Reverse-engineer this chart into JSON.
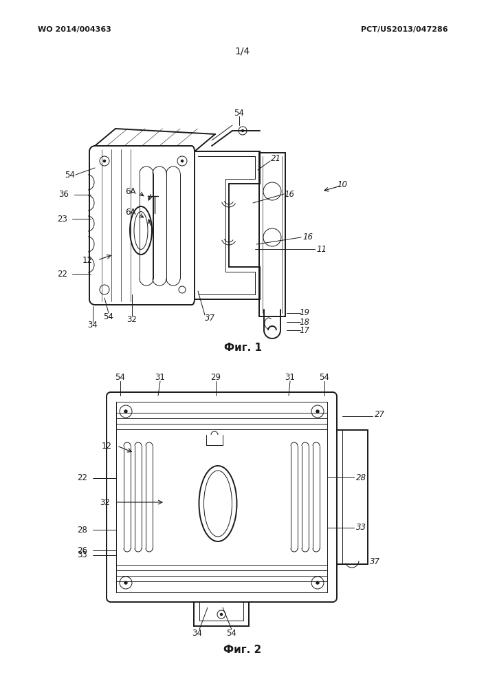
{
  "background_color": "#ffffff",
  "header_left": "WO 2014/004363",
  "header_right": "PCT/US2013/047286",
  "page_label": "1/4",
  "fig1_label": "Фиг. 1",
  "fig2_label": "Фиг. 2",
  "line_color": "#1a1a1a",
  "lw_main": 1.4,
  "lw_thin": 0.7,
  "lw_vt": 0.5,
  "label_fontsize": 8.5,
  "header_fontsize": 8,
  "page_fontsize": 10,
  "fig_caption_fontsize": 11
}
